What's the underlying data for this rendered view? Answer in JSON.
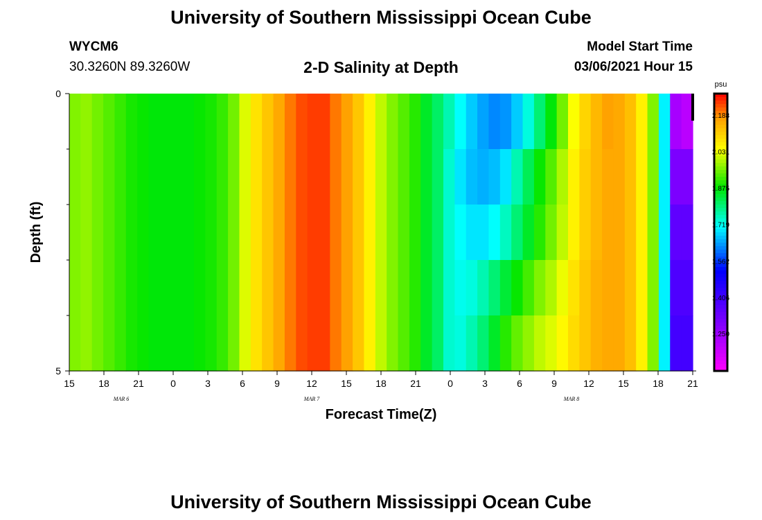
{
  "header": {
    "title": "University of Southern Mississippi Ocean Cube",
    "station_id": "WYCM6",
    "station_coords": "30.3260N 89.3260W",
    "plot_title": "2-D Salinity at Depth",
    "model_start_label": "Model Start Time",
    "model_start_value": "03/06/2021 Hour 15"
  },
  "footer": {
    "title": "University of Southern Mississippi Ocean Cube"
  },
  "chart_data": {
    "type": "heatmap",
    "title": "2-D Salinity at Depth",
    "xlabel": "Forecast Time(Z)",
    "ylabel": "Depth (ft)",
    "x_tick_labels": [
      "15",
      "18",
      "21",
      "0",
      "3",
      "6",
      "9",
      "12",
      "15",
      "18",
      "21",
      "0",
      "3",
      "6",
      "9",
      "12",
      "15",
      "18",
      "21"
    ],
    "date_labels": [
      {
        "label": "MAR 6",
        "tick_index": 1.5
      },
      {
        "label": "MAR 7",
        "tick_index": 7
      },
      {
        "label": "MAR 8",
        "tick_index": 14.5
      }
    ],
    "y_tick_labels": [
      "0",
      "5"
    ],
    "ylim": [
      0,
      5
    ],
    "y_minor_ticks": [
      1,
      2,
      3,
      4
    ],
    "colorbar": {
      "unit": "psu",
      "min": 1.09,
      "max": 2.28,
      "tick_values": [
        2.188,
        2.031,
        1.875,
        1.719,
        1.562,
        1.406,
        1.25
      ],
      "tick_labels": [
        "2.188",
        "2.031",
        "1.875",
        "1.719",
        "1.562",
        "1.406",
        "1.250"
      ]
    },
    "time_hours": [
      0,
      1,
      2,
      3,
      4,
      5,
      6,
      7,
      8,
      9,
      10,
      11,
      12,
      13,
      14,
      15,
      16,
      17,
      18,
      19,
      20,
      21,
      22,
      23,
      24,
      25,
      26,
      27,
      28,
      29,
      30,
      31,
      32,
      33,
      34,
      35,
      36,
      37,
      38,
      39,
      40,
      41,
      42,
      43,
      44,
      45,
      46,
      47,
      48,
      49,
      50,
      51,
      52,
      53,
      54
    ],
    "depth_layers_ft": [
      0.5,
      1.5,
      2.5,
      3.5,
      4.5
    ],
    "salinity_psu": [
      [
        1.96,
        1.97,
        1.95,
        1.93,
        1.91,
        1.89,
        1.88,
        1.87,
        1.87,
        1.87,
        1.87,
        1.88,
        1.89,
        1.91,
        1.95,
        2.02,
        2.08,
        2.12,
        2.16,
        2.2,
        2.23,
        2.24,
        2.24,
        2.2,
        2.17,
        2.12,
        2.06,
        2.0,
        1.96,
        1.93,
        1.9,
        1.85,
        1.81,
        1.76,
        1.71,
        1.67,
        1.64,
        1.62,
        1.63,
        1.67,
        1.73,
        1.8,
        1.87,
        1.95,
        2.04,
        2.1,
        2.14,
        2.17,
        2.16,
        2.13,
        2.06,
        1.96,
        1.7,
        1.23,
        1.2
      ],
      [
        1.96,
        1.97,
        1.95,
        1.93,
        1.91,
        1.89,
        1.88,
        1.87,
        1.87,
        1.87,
        1.87,
        1.88,
        1.89,
        1.91,
        1.95,
        2.02,
        2.08,
        2.12,
        2.16,
        2.2,
        2.23,
        2.24,
        2.24,
        2.2,
        2.17,
        2.12,
        2.06,
        2.0,
        1.96,
        1.93,
        1.9,
        1.85,
        1.81,
        1.74,
        1.69,
        1.66,
        1.65,
        1.66,
        1.69,
        1.76,
        1.82,
        1.88,
        1.93,
        1.99,
        2.06,
        2.11,
        2.14,
        2.16,
        2.16,
        2.13,
        2.06,
        1.96,
        1.7,
        1.3,
        1.3
      ],
      [
        1.96,
        1.97,
        1.95,
        1.93,
        1.91,
        1.89,
        1.88,
        1.87,
        1.87,
        1.87,
        1.87,
        1.88,
        1.89,
        1.91,
        1.95,
        2.02,
        2.08,
        2.12,
        2.16,
        2.2,
        2.23,
        2.24,
        2.24,
        2.2,
        2.17,
        2.12,
        2.06,
        2.0,
        1.96,
        1.93,
        1.9,
        1.85,
        1.81,
        1.74,
        1.71,
        1.69,
        1.69,
        1.71,
        1.75,
        1.8,
        1.85,
        1.9,
        1.95,
        2.0,
        2.06,
        2.11,
        2.14,
        2.16,
        2.16,
        2.13,
        2.06,
        1.96,
        1.7,
        1.35,
        1.35
      ],
      [
        1.96,
        1.97,
        1.95,
        1.93,
        1.91,
        1.89,
        1.88,
        1.87,
        1.87,
        1.87,
        1.87,
        1.88,
        1.89,
        1.91,
        1.95,
        2.02,
        2.08,
        2.12,
        2.16,
        2.2,
        2.23,
        2.24,
        2.24,
        2.2,
        2.17,
        2.12,
        2.06,
        2.0,
        1.96,
        1.93,
        1.9,
        1.85,
        1.81,
        1.74,
        1.72,
        1.73,
        1.76,
        1.8,
        1.84,
        1.88,
        1.92,
        1.96,
        1.99,
        2.03,
        2.08,
        2.12,
        2.15,
        2.16,
        2.16,
        2.13,
        2.06,
        1.96,
        1.7,
        1.38,
        1.38
      ],
      [
        1.96,
        1.97,
        1.95,
        1.93,
        1.91,
        1.89,
        1.88,
        1.87,
        1.87,
        1.87,
        1.87,
        1.88,
        1.89,
        1.91,
        1.95,
        2.02,
        2.08,
        2.12,
        2.16,
        2.2,
        2.23,
        2.24,
        2.24,
        2.2,
        2.17,
        2.12,
        2.06,
        2.0,
        1.96,
        1.93,
        1.9,
        1.85,
        1.81,
        1.74,
        1.73,
        1.76,
        1.8,
        1.85,
        1.9,
        1.94,
        1.97,
        2.0,
        2.02,
        2.05,
        2.09,
        2.12,
        2.15,
        2.16,
        2.16,
        2.13,
        2.06,
        1.96,
        1.7,
        1.4,
        1.4
      ]
    ]
  }
}
